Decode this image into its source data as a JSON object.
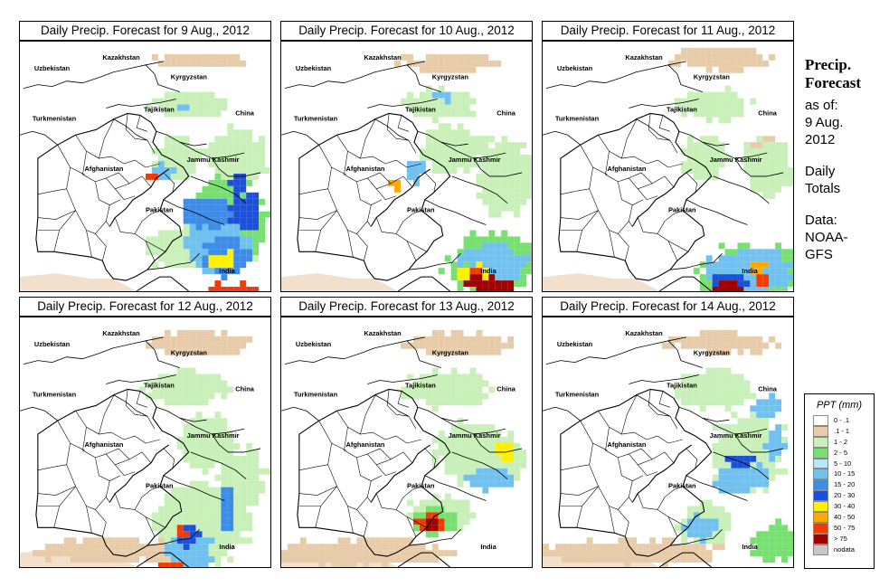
{
  "panels": [
    {
      "title": "Daily Precip. Forecast for  9 Aug., 2012"
    },
    {
      "title": "Daily Precip. Forecast for  10 Aug., 2012"
    },
    {
      "title": "Daily Precip. Forecast for  11 Aug., 2012"
    },
    {
      "title": "Daily Precip. Forecast for  12 Aug., 2012"
    },
    {
      "title": "Daily Precip. Forecast for  13 Aug., 2012"
    },
    {
      "title": "Daily Precip. Forecast for  14 Aug., 2012"
    }
  ],
  "map_labels": {
    "kazakhstan": "Kazakhstan",
    "uzbekistan": "Uzbekistan",
    "kyrgyzstan": "Kyrgyzstan",
    "tajikistan": "Tajikistan",
    "china": "China",
    "turkmenistan": "Turkmenistan",
    "afghanistan": "Afghanistan",
    "jammu_kashmir": "Jammu Kashmir",
    "pakistan": "Pakistan",
    "india": "India"
  },
  "sidebar": {
    "title_line1": "Precip.",
    "title_line2": "Forecast",
    "asof_line1": "as of:",
    "asof_line2": "9 Aug.",
    "asof_line3": "2012",
    "totals_line1": "Daily",
    "totals_line2": "Totals",
    "data_line1": "Data:",
    "data_line2": "NOAA-",
    "data_line3": "GFS"
  },
  "legend": {
    "title": "PPT (mm)",
    "items": [
      {
        "label": "0 - .1",
        "color": "#ffffff"
      },
      {
        "label": ".1 - 1",
        "color": "#e8ccaa"
      },
      {
        "label": "1 - 2",
        "color": "#c8f0b8"
      },
      {
        "label": "2 - 5",
        "color": "#78e070"
      },
      {
        "label": "5 - 10",
        "color": "#b8e8f8"
      },
      {
        "label": "10 - 15",
        "color": "#70c0f0"
      },
      {
        "label": "15 - 20",
        "color": "#3c8ce8"
      },
      {
        "label": "20 - 30",
        "color": "#1c50d8"
      },
      {
        "label": "30 - 40",
        "color": "#fff000"
      },
      {
        "label": "40 - 50",
        "color": "#ffa800"
      },
      {
        "label": "50 - 75",
        "color": "#f03c00"
      },
      {
        "label": "> 75",
        "color": "#a00000"
      },
      {
        "label": "nodata",
        "color": "#c8c8c8"
      }
    ]
  }
}
